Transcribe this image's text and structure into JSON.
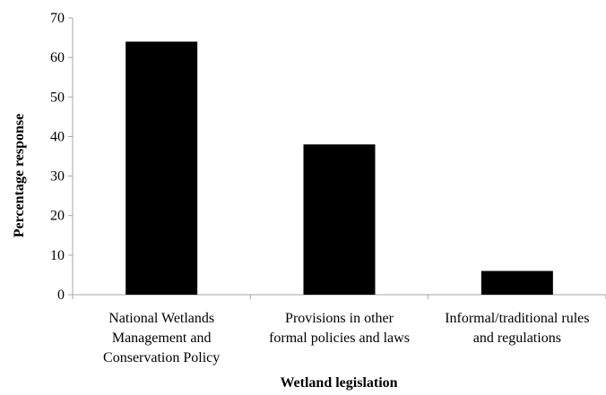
{
  "chart_data": {
    "type": "bar",
    "title": "",
    "xlabel": "Wetland legislation",
    "ylabel": "Percentage response",
    "categories": [
      [
        "National Wetlands",
        "Management and",
        "Conservation Policy"
      ],
      [
        "Provisions in other",
        "formal policies and laws"
      ],
      [
        "Informal/traditional rules",
        "and regulations"
      ]
    ],
    "values": [
      64,
      38,
      6
    ],
    "ylim": [
      0,
      70
    ],
    "yticks": [
      0,
      10,
      20,
      30,
      40,
      50,
      60,
      70
    ],
    "grid": false,
    "legend": "none",
    "bar_color": "#000000",
    "axis_color": "#a6a6a6"
  }
}
